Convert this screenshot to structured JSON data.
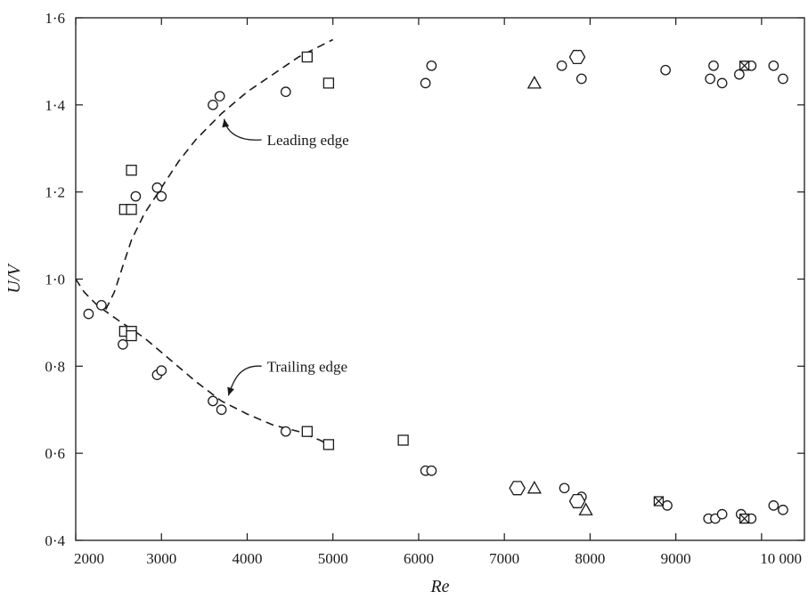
{
  "chart_data": {
    "type": "scatter",
    "title": "",
    "xlabel": "Re",
    "ylabel": "U/V",
    "xlim": [
      2000,
      10500
    ],
    "ylim": [
      0.4,
      1.6
    ],
    "grid": false,
    "x_ticks": [
      2000,
      3000,
      4000,
      5000,
      6000,
      7000,
      8000,
      9000,
      10000
    ],
    "x_tick_labels": [
      "2000",
      "3000",
      "4000",
      "5000",
      "6000",
      "7000",
      "8000",
      "9000",
      "10 000"
    ],
    "y_ticks": [
      0.4,
      0.6,
      0.8,
      1.0,
      1.2,
      1.4,
      1.6
    ],
    "y_tick_labels": [
      "0·4",
      "0·6",
      "0·8",
      "1·0",
      "1·2",
      "1·4",
      "1·6"
    ],
    "series": [
      {
        "marker": "circle",
        "points": [
          [
            2150,
            0.92
          ],
          [
            2300,
            0.94
          ],
          [
            2550,
            0.85
          ],
          [
            2950,
            0.78
          ],
          [
            3000,
            0.79
          ],
          [
            3600,
            0.72
          ],
          [
            3700,
            0.7
          ],
          [
            4450,
            0.65
          ],
          [
            6080,
            0.56
          ],
          [
            6150,
            0.56
          ],
          [
            7700,
            0.52
          ],
          [
            7900,
            0.5
          ],
          [
            8900,
            0.48
          ],
          [
            9380,
            0.45
          ],
          [
            9460,
            0.45
          ],
          [
            9540,
            0.46
          ],
          [
            9760,
            0.46
          ],
          [
            9880,
            0.45
          ],
          [
            10140,
            0.48
          ],
          [
            10250,
            0.47
          ],
          [
            2700,
            1.19
          ],
          [
            2950,
            1.21
          ],
          [
            3000,
            1.19
          ],
          [
            3600,
            1.4
          ],
          [
            3680,
            1.42
          ],
          [
            4450,
            1.43
          ],
          [
            6080,
            1.45
          ],
          [
            6150,
            1.49
          ],
          [
            7670,
            1.49
          ],
          [
            7900,
            1.46
          ],
          [
            8880,
            1.48
          ],
          [
            9400,
            1.46
          ],
          [
            9440,
            1.49
          ],
          [
            9540,
            1.45
          ],
          [
            9740,
            1.47
          ],
          [
            9880,
            1.49
          ],
          [
            10140,
            1.49
          ],
          [
            10250,
            1.46
          ]
        ]
      },
      {
        "marker": "square",
        "points": [
          [
            2570,
            0.88
          ],
          [
            2650,
            0.88
          ],
          [
            2650,
            0.87
          ],
          [
            4700,
            0.65
          ],
          [
            4950,
            0.62
          ],
          [
            5820,
            0.63
          ],
          [
            2570,
            1.16
          ],
          [
            2650,
            1.16
          ],
          [
            2650,
            1.25
          ],
          [
            4700,
            1.51
          ],
          [
            4950,
            1.45
          ]
        ]
      },
      {
        "marker": "triangle",
        "points": [
          [
            7350,
            0.52
          ],
          [
            7950,
            0.47
          ],
          [
            7350,
            1.45
          ]
        ]
      },
      {
        "marker": "hexagon",
        "points": [
          [
            7150,
            0.52
          ],
          [
            7850,
            0.49
          ],
          [
            7850,
            1.51
          ]
        ]
      },
      {
        "marker": "square-cross",
        "points": [
          [
            8800,
            0.49
          ],
          [
            9800,
            0.45
          ],
          [
            9800,
            1.49
          ]
        ]
      }
    ],
    "curves": [
      {
        "style": "dashed",
        "label": "Leading edge",
        "points": [
          [
            2350,
            0.93
          ],
          [
            2450,
            0.97
          ],
          [
            2550,
            1.03
          ],
          [
            2650,
            1.09
          ],
          [
            2800,
            1.15
          ],
          [
            3000,
            1.21
          ],
          [
            3200,
            1.27
          ],
          [
            3400,
            1.32
          ],
          [
            3700,
            1.38
          ],
          [
            4000,
            1.43
          ],
          [
            4300,
            1.47
          ],
          [
            4600,
            1.51
          ],
          [
            4800,
            1.53
          ],
          [
            5000,
            1.55
          ]
        ]
      },
      {
        "style": "dashed",
        "label": "Trailing edge",
        "points": [
          [
            2000,
            1.0
          ],
          [
            2100,
            0.97
          ],
          [
            2250,
            0.94
          ],
          [
            2500,
            0.905
          ],
          [
            2800,
            0.865
          ],
          [
            3100,
            0.815
          ],
          [
            3400,
            0.765
          ],
          [
            3700,
            0.72
          ],
          [
            4000,
            0.69
          ],
          [
            4300,
            0.665
          ],
          [
            4600,
            0.65
          ],
          [
            4850,
            0.63
          ],
          [
            5000,
            0.615
          ]
        ]
      }
    ],
    "annotations": [
      {
        "text": "Leading edge",
        "target": [
          3700,
          1.38
        ],
        "text_at": [
          4230,
          1.32
        ]
      },
      {
        "text": "Trailing edge",
        "target": [
          3750,
          0.72
        ],
        "text_at": [
          4230,
          0.8
        ]
      }
    ]
  }
}
